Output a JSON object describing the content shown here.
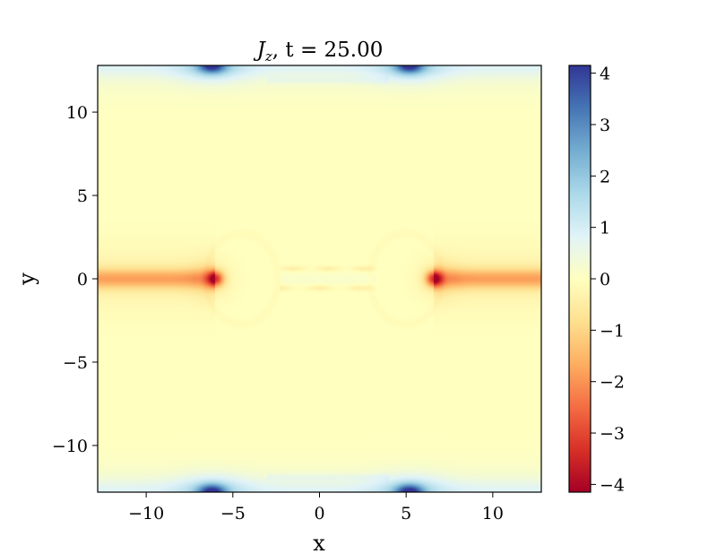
{
  "chart_data": {
    "type": "heatmap",
    "title": {
      "main": "J",
      "sub": "z",
      "rest": ",  t = 25.00"
    },
    "xlabel": "x",
    "ylabel": "y",
    "xlim": [
      -12.8,
      12.8
    ],
    "ylim": [
      -12.8,
      12.8
    ],
    "xticks": [
      -10,
      -5,
      0,
      5,
      10
    ],
    "yticks": [
      -10,
      -5,
      0,
      5,
      10
    ],
    "xticklabels": [
      "−10",
      "−5",
      "0",
      "5",
      "10"
    ],
    "yticklabels": [
      "−10",
      "−5",
      "0",
      "5",
      "10"
    ],
    "colormap": "RdYlBu",
    "colorbar": {
      "vmin": -4.15,
      "vmax": 4.15,
      "ticks": [
        -4,
        -3,
        -2,
        -1,
        0,
        1,
        2,
        3,
        4
      ],
      "ticklabels": [
        "−4",
        "−3",
        "−2",
        "−1",
        "0",
        "1",
        "2",
        "3",
        "4"
      ]
    },
    "background_value": 0,
    "features": [
      {
        "kind": "current_sheet",
        "y": 0,
        "x_from": -12.8,
        "x_to": -6.0,
        "value": -1.6
      },
      {
        "kind": "current_sheet",
        "y": 0,
        "x_from": 6.6,
        "x_to": 12.8,
        "value": -1.6
      },
      {
        "kind": "peak",
        "x": -6.0,
        "y": 0,
        "value": -4.1
      },
      {
        "kind": "peak",
        "x": 6.6,
        "y": 0,
        "value": -4.1
      },
      {
        "kind": "peak",
        "x": -6.2,
        "y": 12.8,
        "value": 4.1
      },
      {
        "kind": "peak",
        "x": 5.2,
        "y": 12.8,
        "value": 4.1
      },
      {
        "kind": "peak",
        "x": -6.2,
        "y": -12.8,
        "value": 4.1
      },
      {
        "kind": "peak",
        "x": 5.2,
        "y": -12.8,
        "value": 4.1
      },
      {
        "kind": "boundary_band",
        "y": 12.8,
        "value": 1.2
      },
      {
        "kind": "boundary_band",
        "y": -12.8,
        "value": 1.2
      }
    ]
  }
}
